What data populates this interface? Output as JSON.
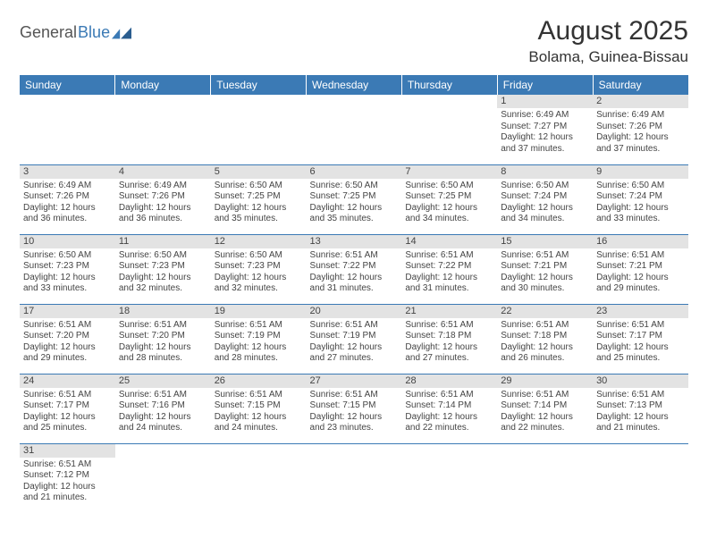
{
  "brand": {
    "part1": "General",
    "part2": "Blue"
  },
  "title": "August 2025",
  "location": "Bolama, Guinea-Bissau",
  "colors": {
    "header_blue": "#3b7ab5",
    "daynum_bg": "#e3e3e3",
    "text": "#333333"
  },
  "weekdays": [
    "Sunday",
    "Monday",
    "Tuesday",
    "Wednesday",
    "Thursday",
    "Friday",
    "Saturday"
  ],
  "weeks": [
    [
      null,
      null,
      null,
      null,
      null,
      {
        "n": "1",
        "sunrise": "Sunrise: 6:49 AM",
        "sunset": "Sunset: 7:27 PM",
        "day1": "Daylight: 12 hours",
        "day2": "and 37 minutes."
      },
      {
        "n": "2",
        "sunrise": "Sunrise: 6:49 AM",
        "sunset": "Sunset: 7:26 PM",
        "day1": "Daylight: 12 hours",
        "day2": "and 37 minutes."
      }
    ],
    [
      {
        "n": "3",
        "sunrise": "Sunrise: 6:49 AM",
        "sunset": "Sunset: 7:26 PM",
        "day1": "Daylight: 12 hours",
        "day2": "and 36 minutes."
      },
      {
        "n": "4",
        "sunrise": "Sunrise: 6:49 AM",
        "sunset": "Sunset: 7:26 PM",
        "day1": "Daylight: 12 hours",
        "day2": "and 36 minutes."
      },
      {
        "n": "5",
        "sunrise": "Sunrise: 6:50 AM",
        "sunset": "Sunset: 7:25 PM",
        "day1": "Daylight: 12 hours",
        "day2": "and 35 minutes."
      },
      {
        "n": "6",
        "sunrise": "Sunrise: 6:50 AM",
        "sunset": "Sunset: 7:25 PM",
        "day1": "Daylight: 12 hours",
        "day2": "and 35 minutes."
      },
      {
        "n": "7",
        "sunrise": "Sunrise: 6:50 AM",
        "sunset": "Sunset: 7:25 PM",
        "day1": "Daylight: 12 hours",
        "day2": "and 34 minutes."
      },
      {
        "n": "8",
        "sunrise": "Sunrise: 6:50 AM",
        "sunset": "Sunset: 7:24 PM",
        "day1": "Daylight: 12 hours",
        "day2": "and 34 minutes."
      },
      {
        "n": "9",
        "sunrise": "Sunrise: 6:50 AM",
        "sunset": "Sunset: 7:24 PM",
        "day1": "Daylight: 12 hours",
        "day2": "and 33 minutes."
      }
    ],
    [
      {
        "n": "10",
        "sunrise": "Sunrise: 6:50 AM",
        "sunset": "Sunset: 7:23 PM",
        "day1": "Daylight: 12 hours",
        "day2": "and 33 minutes."
      },
      {
        "n": "11",
        "sunrise": "Sunrise: 6:50 AM",
        "sunset": "Sunset: 7:23 PM",
        "day1": "Daylight: 12 hours",
        "day2": "and 32 minutes."
      },
      {
        "n": "12",
        "sunrise": "Sunrise: 6:50 AM",
        "sunset": "Sunset: 7:23 PM",
        "day1": "Daylight: 12 hours",
        "day2": "and 32 minutes."
      },
      {
        "n": "13",
        "sunrise": "Sunrise: 6:51 AM",
        "sunset": "Sunset: 7:22 PM",
        "day1": "Daylight: 12 hours",
        "day2": "and 31 minutes."
      },
      {
        "n": "14",
        "sunrise": "Sunrise: 6:51 AM",
        "sunset": "Sunset: 7:22 PM",
        "day1": "Daylight: 12 hours",
        "day2": "and 31 minutes."
      },
      {
        "n": "15",
        "sunrise": "Sunrise: 6:51 AM",
        "sunset": "Sunset: 7:21 PM",
        "day1": "Daylight: 12 hours",
        "day2": "and 30 minutes."
      },
      {
        "n": "16",
        "sunrise": "Sunrise: 6:51 AM",
        "sunset": "Sunset: 7:21 PM",
        "day1": "Daylight: 12 hours",
        "day2": "and 29 minutes."
      }
    ],
    [
      {
        "n": "17",
        "sunrise": "Sunrise: 6:51 AM",
        "sunset": "Sunset: 7:20 PM",
        "day1": "Daylight: 12 hours",
        "day2": "and 29 minutes."
      },
      {
        "n": "18",
        "sunrise": "Sunrise: 6:51 AM",
        "sunset": "Sunset: 7:20 PM",
        "day1": "Daylight: 12 hours",
        "day2": "and 28 minutes."
      },
      {
        "n": "19",
        "sunrise": "Sunrise: 6:51 AM",
        "sunset": "Sunset: 7:19 PM",
        "day1": "Daylight: 12 hours",
        "day2": "and 28 minutes."
      },
      {
        "n": "20",
        "sunrise": "Sunrise: 6:51 AM",
        "sunset": "Sunset: 7:19 PM",
        "day1": "Daylight: 12 hours",
        "day2": "and 27 minutes."
      },
      {
        "n": "21",
        "sunrise": "Sunrise: 6:51 AM",
        "sunset": "Sunset: 7:18 PM",
        "day1": "Daylight: 12 hours",
        "day2": "and 27 minutes."
      },
      {
        "n": "22",
        "sunrise": "Sunrise: 6:51 AM",
        "sunset": "Sunset: 7:18 PM",
        "day1": "Daylight: 12 hours",
        "day2": "and 26 minutes."
      },
      {
        "n": "23",
        "sunrise": "Sunrise: 6:51 AM",
        "sunset": "Sunset: 7:17 PM",
        "day1": "Daylight: 12 hours",
        "day2": "and 25 minutes."
      }
    ],
    [
      {
        "n": "24",
        "sunrise": "Sunrise: 6:51 AM",
        "sunset": "Sunset: 7:17 PM",
        "day1": "Daylight: 12 hours",
        "day2": "and 25 minutes."
      },
      {
        "n": "25",
        "sunrise": "Sunrise: 6:51 AM",
        "sunset": "Sunset: 7:16 PM",
        "day1": "Daylight: 12 hours",
        "day2": "and 24 minutes."
      },
      {
        "n": "26",
        "sunrise": "Sunrise: 6:51 AM",
        "sunset": "Sunset: 7:15 PM",
        "day1": "Daylight: 12 hours",
        "day2": "and 24 minutes."
      },
      {
        "n": "27",
        "sunrise": "Sunrise: 6:51 AM",
        "sunset": "Sunset: 7:15 PM",
        "day1": "Daylight: 12 hours",
        "day2": "and 23 minutes."
      },
      {
        "n": "28",
        "sunrise": "Sunrise: 6:51 AM",
        "sunset": "Sunset: 7:14 PM",
        "day1": "Daylight: 12 hours",
        "day2": "and 22 minutes."
      },
      {
        "n": "29",
        "sunrise": "Sunrise: 6:51 AM",
        "sunset": "Sunset: 7:14 PM",
        "day1": "Daylight: 12 hours",
        "day2": "and 22 minutes."
      },
      {
        "n": "30",
        "sunrise": "Sunrise: 6:51 AM",
        "sunset": "Sunset: 7:13 PM",
        "day1": "Daylight: 12 hours",
        "day2": "and 21 minutes."
      }
    ],
    [
      {
        "n": "31",
        "sunrise": "Sunrise: 6:51 AM",
        "sunset": "Sunset: 7:12 PM",
        "day1": "Daylight: 12 hours",
        "day2": "and 21 minutes."
      },
      null,
      null,
      null,
      null,
      null,
      null
    ]
  ]
}
